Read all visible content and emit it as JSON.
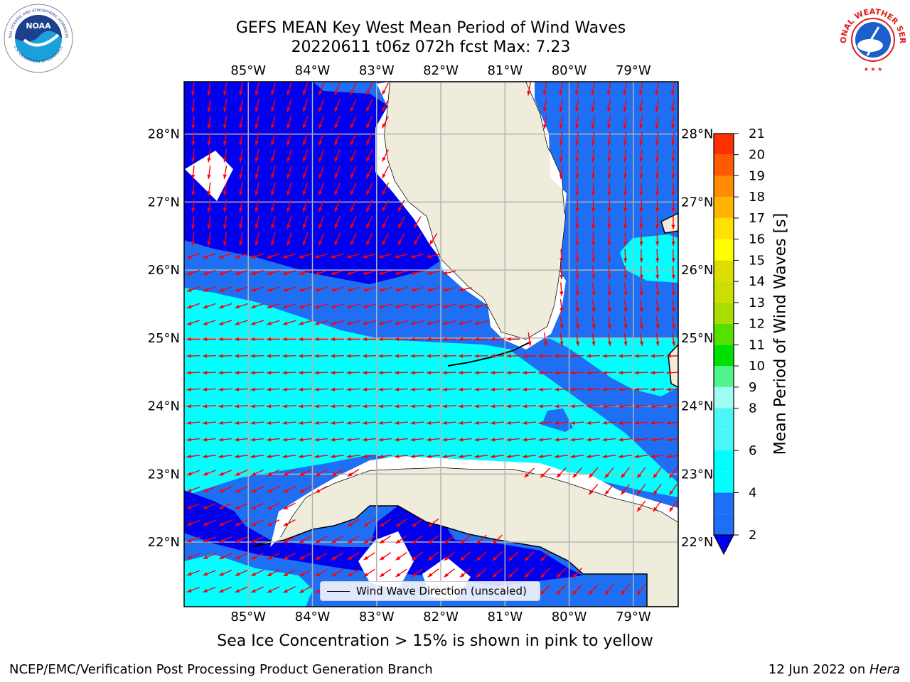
{
  "header": {
    "title_line1": "GEFS MEAN Key West Mean Period of Wind Waves",
    "title_line2": "20220611 t06z 072h fcst   Max: 7.23"
  },
  "logos": {
    "left": {
      "icon": "noaa-logo",
      "text_top": "NATIONAL OCEANIC AND ATMOSPHERIC ADMINISTRATION",
      "text_bottom": "U.S. DEPARTMENT OF COMMERCE",
      "center": "NOAA"
    },
    "right": {
      "icon": "nws-logo",
      "text": "NATIONAL WEATHER SERVICE"
    }
  },
  "map": {
    "projection": "PlateCarree",
    "lon_range": [
      -86.0,
      -78.3
    ],
    "lat_range": [
      21.05,
      28.77
    ],
    "lon_ticks": [
      -85,
      -84,
      -83,
      -82,
      -81,
      -80,
      -79
    ],
    "lon_tick_labels": [
      "85°W",
      "84°W",
      "83°W",
      "82°W",
      "81°W",
      "80°W",
      "79°W"
    ],
    "lat_ticks": [
      22,
      23,
      24,
      25,
      26,
      27,
      28
    ],
    "lat_tick_labels": [
      "22°N",
      "23°N",
      "24°N",
      "25°N",
      "26°N",
      "27°N",
      "28°N"
    ],
    "colors": {
      "land": "#efecdc",
      "band_2_4": "#1f6ff5",
      "band_4_6": "#00ffff",
      "below_2": "#0000ee",
      "arrow": "#ff0000",
      "grid": "#b3b3b3"
    }
  },
  "colorbar": {
    "title": "Mean Period of Wind Waves [s]",
    "levels": [
      2,
      3,
      4,
      5,
      6,
      7,
      8,
      9,
      10,
      11,
      12,
      13,
      14,
      15,
      16,
      17,
      18,
      19,
      20,
      21
    ],
    "tick_labels": [
      "2",
      "4",
      "6",
      "8",
      "9",
      "10",
      "11",
      "12",
      "13",
      "14",
      "15",
      "16",
      "17",
      "18",
      "19",
      "20",
      "21"
    ],
    "extend": "min",
    "under_color": "#0000ee"
  },
  "legend": {
    "label": "Wind Wave Direction (unscaled)",
    "placement": "lower-center"
  },
  "footer": {
    "ice_note": "Sea Ice Concentration > 15% is shown in pink to yellow",
    "credit_left": "NCEP/EMC/Verification Post Processing Product Generation Branch",
    "credit_right_prefix": "12 Jun 2022 on ",
    "credit_right_machine": "Hera"
  }
}
